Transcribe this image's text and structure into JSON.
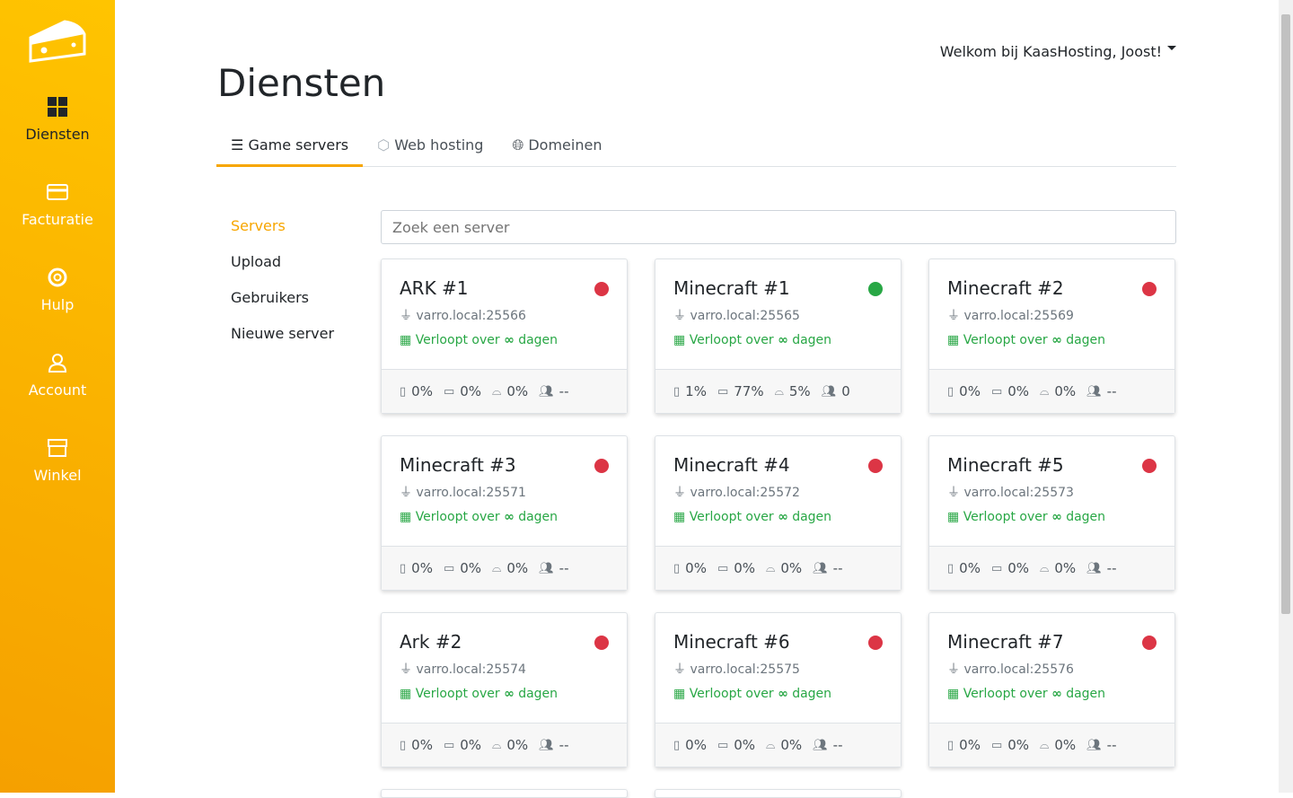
{
  "sidebar": {
    "items": [
      {
        "label": "Diensten",
        "icon": "grid-icon"
      },
      {
        "label": "Facturatie",
        "icon": "credit-card-icon"
      },
      {
        "label": "Hulp",
        "icon": "lifebuoy-icon"
      },
      {
        "label": "Account",
        "icon": "user-icon"
      },
      {
        "label": "Winkel",
        "icon": "store-icon"
      }
    ]
  },
  "header": {
    "welcome": "Welkom bij KaasHosting, Joost!",
    "title": "Diensten"
  },
  "tabs": [
    {
      "label": "Game servers"
    },
    {
      "label": "Web hosting"
    },
    {
      "label": "Domeinen"
    }
  ],
  "subnav": [
    "Servers",
    "Upload",
    "Gebruikers",
    "Nieuwe server"
  ],
  "search": {
    "placeholder": "Zoek een server"
  },
  "expires": {
    "prefix": "Verloopt over",
    "value": "∞",
    "suffix": "dagen"
  },
  "colors": {
    "online": "#28a745",
    "offline": "#dc3545",
    "accent": "#f7a600"
  },
  "servers": [
    {
      "name": "ARK #1",
      "address": "varro.local:25566",
      "status": "offline",
      "cpu": "0%",
      "ram": "0%",
      "disk": "0%",
      "players": "--"
    },
    {
      "name": "Minecraft #1",
      "address": "varro.local:25565",
      "status": "online",
      "cpu": "1%",
      "ram": "77%",
      "disk": "5%",
      "players": "0"
    },
    {
      "name": "Minecraft #2",
      "address": "varro.local:25569",
      "status": "offline",
      "cpu": "0%",
      "ram": "0%",
      "disk": "0%",
      "players": "--"
    },
    {
      "name": "Minecraft #3",
      "address": "varro.local:25571",
      "status": "offline",
      "cpu": "0%",
      "ram": "0%",
      "disk": "0%",
      "players": "--"
    },
    {
      "name": "Minecraft #4",
      "address": "varro.local:25572",
      "status": "offline",
      "cpu": "0%",
      "ram": "0%",
      "disk": "0%",
      "players": "--"
    },
    {
      "name": "Minecraft #5",
      "address": "varro.local:25573",
      "status": "offline",
      "cpu": "0%",
      "ram": "0%",
      "disk": "0%",
      "players": "--"
    },
    {
      "name": "Ark #2",
      "address": "varro.local:25574",
      "status": "offline",
      "cpu": "0%",
      "ram": "0%",
      "disk": "0%",
      "players": "--"
    },
    {
      "name": "Minecraft #6",
      "address": "varro.local:25575",
      "status": "offline",
      "cpu": "0%",
      "ram": "0%",
      "disk": "0%",
      "players": "--"
    },
    {
      "name": "Minecraft #7",
      "address": "varro.local:25576",
      "status": "offline",
      "cpu": "0%",
      "ram": "0%",
      "disk": "0%",
      "players": "--"
    }
  ]
}
